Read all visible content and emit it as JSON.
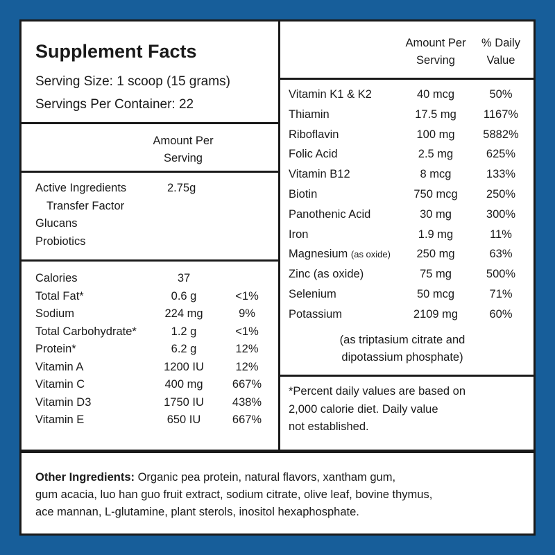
{
  "title": "Supplement Facts",
  "serving_size": "Serving Size: 1 scoop (15 grams)",
  "servings_per_container": "Servings Per Container: 22",
  "left_header": {
    "line1": "Amount Per",
    "line2": "Serving"
  },
  "active": [
    {
      "name": "Active Ingredients",
      "amount": "2.75g"
    },
    {
      "name": "Transfer Factor"
    },
    {
      "name": "Glucans"
    },
    {
      "name": "Probiotics"
    }
  ],
  "nutrients_left": [
    {
      "name": "Calories",
      "amount": "37",
      "dv": ""
    },
    {
      "name": "Total Fat*",
      "amount": "0.6 g",
      "dv": "<1%"
    },
    {
      "name": "Sodium",
      "amount": "224 mg",
      "dv": "9%"
    },
    {
      "name": "Total Carbohydrate*",
      "amount": "1.2 g",
      "dv": "<1%"
    },
    {
      "name": "Protein*",
      "amount": "6.2 g",
      "dv": "12%"
    },
    {
      "name": "Vitamin A",
      "amount": "1200 IU",
      "dv": "12%"
    },
    {
      "name": "Vitamin C",
      "amount": "400 mg",
      "dv": "667%"
    },
    {
      "name": "Vitamin D3",
      "amount": "1750 IU",
      "dv": "438%"
    },
    {
      "name": "Vitamin E",
      "amount": "650 IU",
      "dv": "667%"
    }
  ],
  "right_header": {
    "amount1": "Amount Per",
    "amount2": "Serving",
    "dv1": "% Daily",
    "dv2": "Value"
  },
  "nutrients_right": [
    {
      "name": "Vitamin K1 & K2",
      "note": "",
      "amount": "40 mcg",
      "dv": "50%"
    },
    {
      "name": "Thiamin",
      "note": "",
      "amount": "17.5 mg",
      "dv": "1167%"
    },
    {
      "name": "Riboflavin",
      "note": "",
      "amount": "100 mg",
      "dv": "5882%"
    },
    {
      "name": "Folic Acid",
      "note": "",
      "amount": "2.5 mg",
      "dv": "625%"
    },
    {
      "name": "Vitamin B12",
      "note": "",
      "amount": "8 mcg",
      "dv": "133%"
    },
    {
      "name": "Biotin",
      "note": "",
      "amount": "750 mcg",
      "dv": "250%"
    },
    {
      "name": "Panothenic Acid",
      "note": "",
      "amount": "30 mg",
      "dv": "300%"
    },
    {
      "name": "Iron",
      "note": "",
      "amount": "1.9 mg",
      "dv": "11%"
    },
    {
      "name": "Magnesium",
      "note": "(as oxide)",
      "amount": "250 mg",
      "dv": "63%"
    },
    {
      "name": "Zinc (as oxide)",
      "note": "",
      "amount": "75 mg",
      "dv": "500%"
    },
    {
      "name": "Selenium",
      "note": "",
      "amount": "50 mcg",
      "dv": "71%"
    },
    {
      "name": "Potassium",
      "note": "",
      "amount": "2109 mg",
      "dv": "60%"
    }
  ],
  "potassium_note": {
    "line1": "(as triptasium citrate and",
    "line2": "dipotassium phosphate)"
  },
  "footnote": {
    "line1": "*Percent daily values are based on",
    "line2": "2,000 calorie diet. Daily value",
    "line3": "not established."
  },
  "other_ingredients": {
    "label": "Other Ingredients:",
    "line1": " Organic pea protein, natural flavors, xantham gum,",
    "line2": "gum acacia, luo han guo fruit extract, sodium citrate, olive leaf, bovine thymus,",
    "line3": "ace mannan, L-glutamine, plant sterols, inositol hexaphosphate."
  }
}
